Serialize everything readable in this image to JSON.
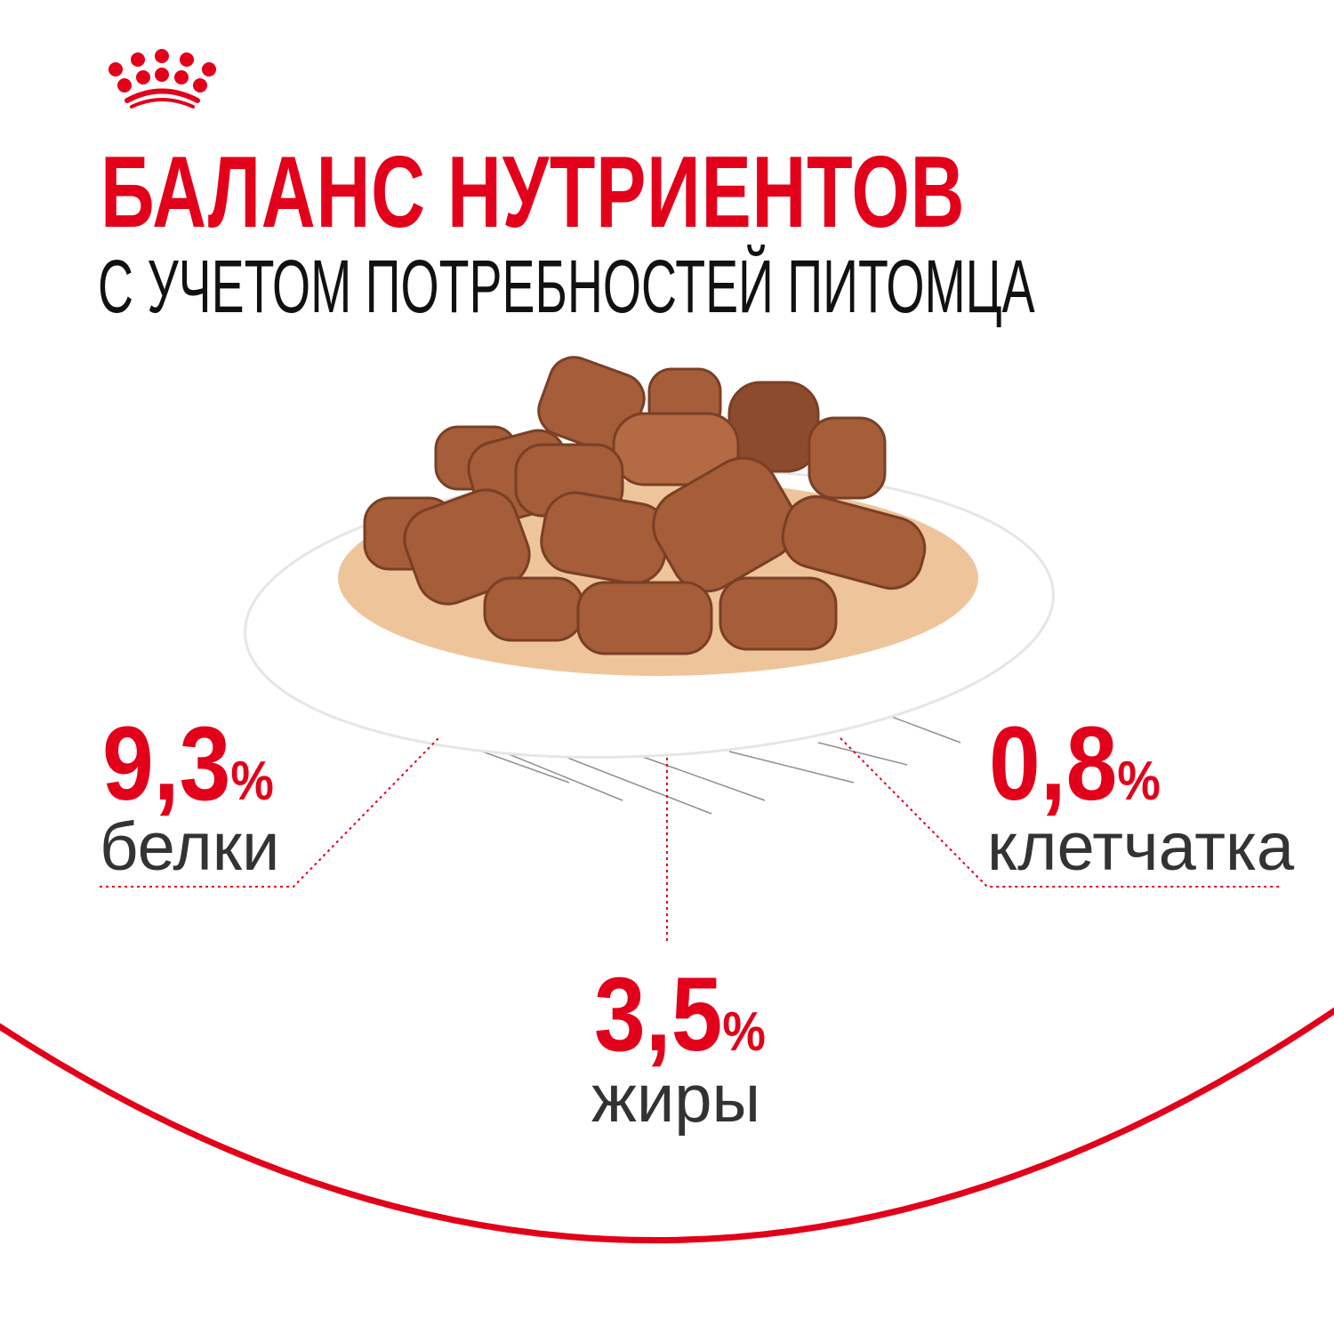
{
  "brand": {
    "logo": "royal-crown-logo",
    "color": "#e2001a"
  },
  "header": {
    "title": "БАЛАНС НУТРИЕНТОВ",
    "subtitle": "С УЧЕТОМ ПОТРЕБНОСТЕЙ ПИТОМЦА"
  },
  "nutrients": [
    {
      "value": "9,3",
      "unit": "%",
      "label": "белки"
    },
    {
      "value": "3,5",
      "unit": "%",
      "label": "жиры"
    },
    {
      "value": "0,8",
      "unit": "%",
      "label": "клетчатка"
    }
  ],
  "image": {
    "subject": "food-plate"
  }
}
